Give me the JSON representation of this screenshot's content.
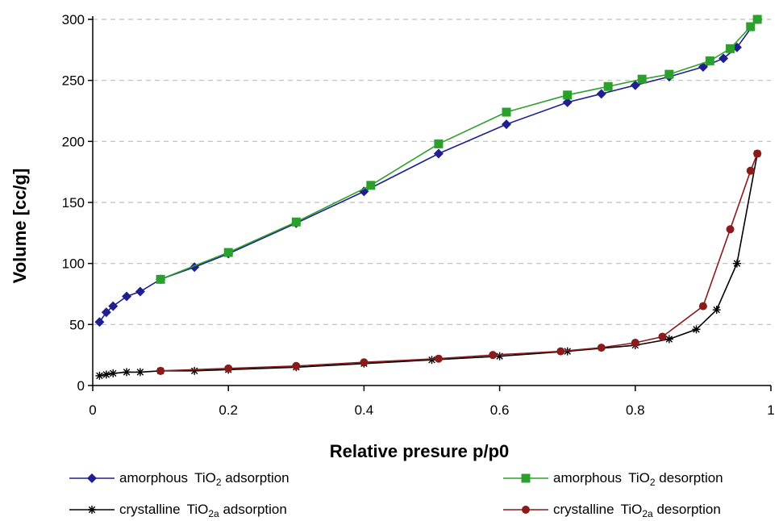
{
  "chart_data": {
    "type": "line",
    "xlabel": "Relative presure p/p0",
    "ylabel": "Volume [cc/g]",
    "xlim": [
      0,
      1
    ],
    "ylim": [
      0,
      300
    ],
    "x_ticks": [
      "0",
      "0.2",
      "0.4",
      "0.6",
      "0.8",
      "1"
    ],
    "y_ticks": [
      "0",
      "50",
      "100",
      "150",
      "200",
      "250",
      "300"
    ],
    "grid": "horizontal dashed",
    "legend_position": "bottom",
    "series": [
      {
        "name": "amorphous TiO2 adsorption",
        "label_name": "amorphous",
        "label_formula": "TiO",
        "label_sub": "2",
        "label_process": "adsorption",
        "color": "#1f1f8f",
        "marker": "diamond",
        "x": [
          0.01,
          0.02,
          0.03,
          0.05,
          0.07,
          0.1,
          0.15,
          0.2,
          0.3,
          0.4,
          0.51,
          0.61,
          0.7,
          0.75,
          0.8,
          0.85,
          0.9,
          0.93,
          0.95,
          0.98
        ],
        "y": [
          52,
          60,
          65,
          73,
          77,
          87,
          97,
          108,
          133,
          159,
          190,
          214,
          232,
          239,
          246,
          253,
          261,
          268,
          277,
          300
        ]
      },
      {
        "name": "amorphous TiO2 desorption",
        "label_name": "amorphous",
        "label_formula": "TiO",
        "label_sub": "2",
        "label_process": "desorption",
        "color": "#2ca02c",
        "marker": "square",
        "x": [
          0.1,
          0.2,
          0.3,
          0.41,
          0.51,
          0.61,
          0.7,
          0.76,
          0.81,
          0.85,
          0.91,
          0.94,
          0.97,
          0.98
        ],
        "y": [
          87,
          109,
          134,
          164,
          198,
          224,
          238,
          245,
          251,
          255,
          266,
          276,
          294,
          300
        ]
      },
      {
        "name": "crystalline TiO2a adsorption",
        "label_name": "crystalline",
        "label_formula": "TiO",
        "label_sub": "2a",
        "label_process": "adsorption",
        "color": "#000000",
        "marker": "asterisk",
        "x": [
          0.01,
          0.02,
          0.03,
          0.05,
          0.07,
          0.1,
          0.15,
          0.2,
          0.3,
          0.4,
          0.5,
          0.6,
          0.7,
          0.8,
          0.85,
          0.89,
          0.92,
          0.95,
          0.98
        ],
        "y": [
          8,
          9,
          10,
          11,
          11,
          12,
          12,
          13,
          15,
          18,
          21,
          24,
          28,
          33,
          38,
          46,
          62,
          100,
          190
        ]
      },
      {
        "name": "crystalline TiO2a desorption",
        "label_name": "crystalline",
        "label_formula": "TiO",
        "label_sub": "2a",
        "label_process": "desorption",
        "color": "#8b1a1a",
        "marker": "circle",
        "x": [
          0.1,
          0.2,
          0.3,
          0.4,
          0.51,
          0.59,
          0.69,
          0.75,
          0.8,
          0.84,
          0.9,
          0.94,
          0.97,
          0.98
        ],
        "y": [
          12,
          14,
          16,
          19,
          22,
          25,
          28,
          31,
          35,
          40,
          65,
          128,
          176,
          190
        ]
      }
    ]
  }
}
